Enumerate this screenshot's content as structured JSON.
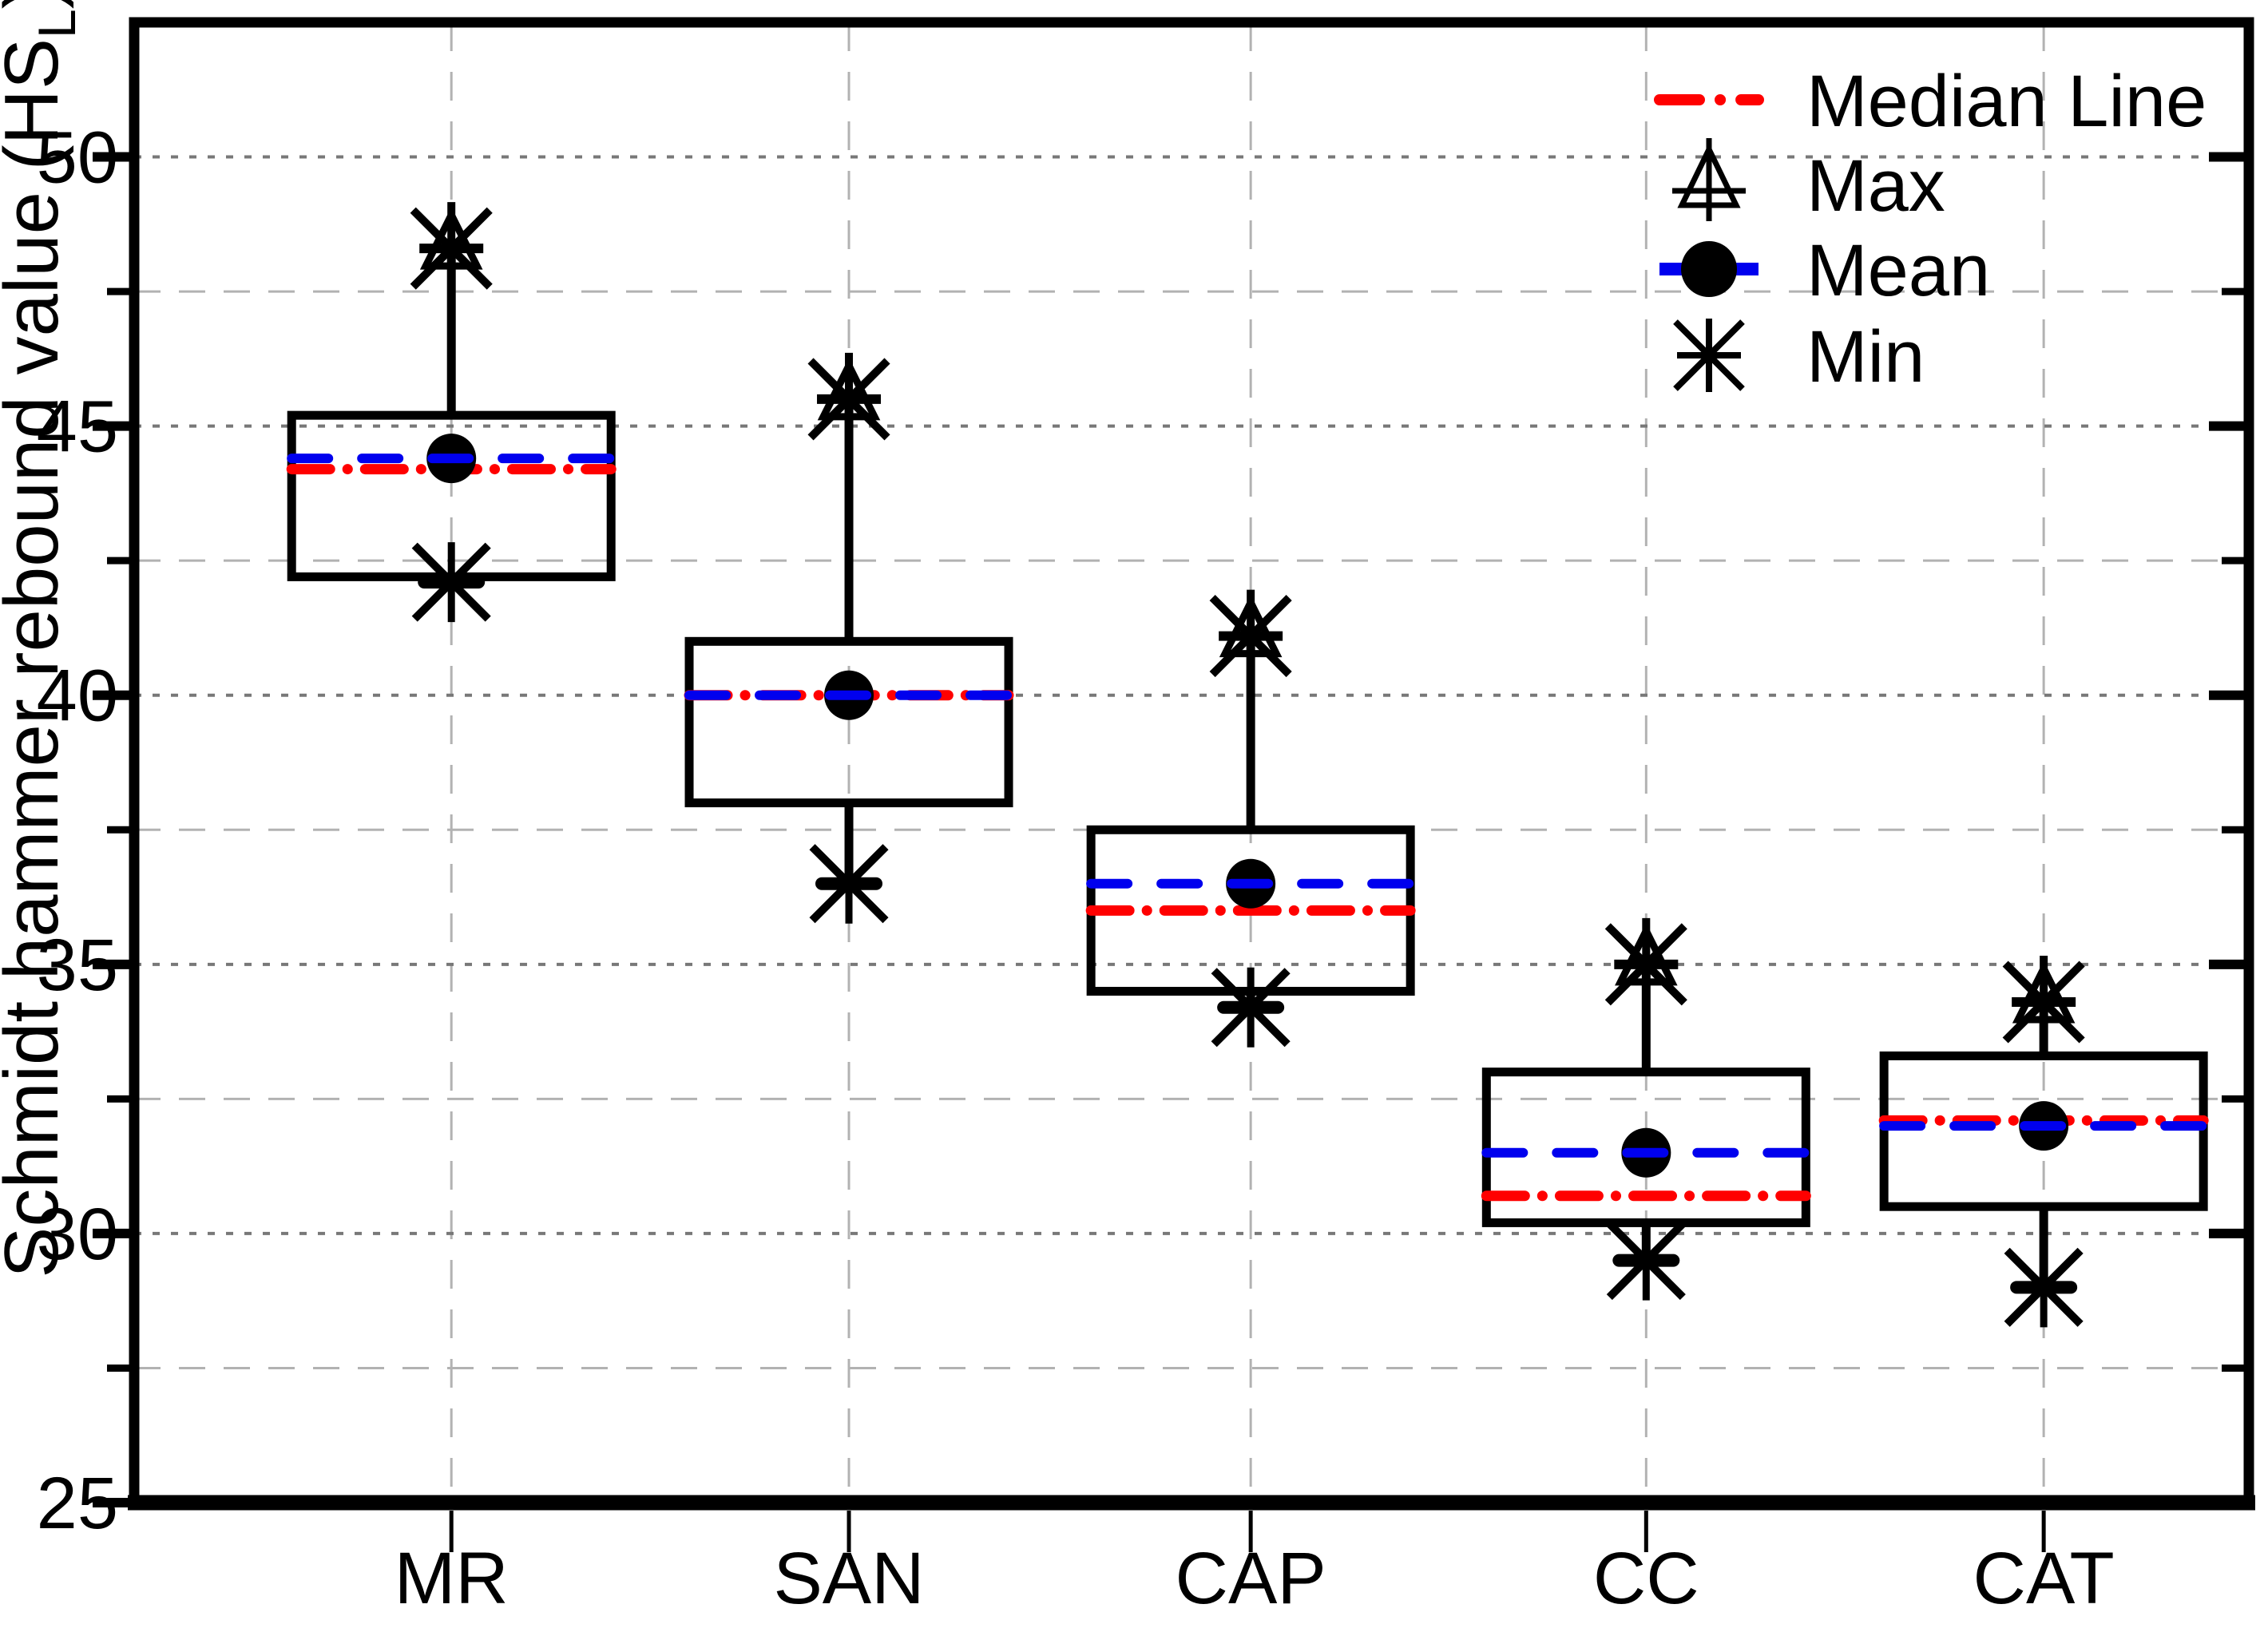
{
  "axes": {
    "y_title_main": "Schmidt hammer rebound value (HS",
    "y_title_sub": "L",
    "y_title_suffix": ")",
    "y_major_ticks": [
      25,
      30,
      35,
      40,
      45,
      50
    ],
    "y_minor_ticks": [
      27.5,
      32.5,
      37.5,
      42.5,
      47.5
    ],
    "y_range": [
      25,
      52.5
    ],
    "categories": [
      "MR",
      "SAN",
      "CAP",
      "CC",
      "CAT"
    ]
  },
  "legend": {
    "position": "top-right",
    "items": [
      {
        "key": "median",
        "label": "Median Line"
      },
      {
        "key": "max",
        "label": "Max"
      },
      {
        "key": "mean",
        "label": "Mean"
      },
      {
        "key": "min",
        "label": "Min"
      }
    ]
  },
  "colors": {
    "median_line": "#ff0000",
    "mean_line": "#0000ee",
    "marker": "#000000",
    "frame": "#000000",
    "grid_major": "#787878",
    "grid_minor": "#b2b2b2",
    "grid_vertical": "#b2b2b2",
    "background": "#ffffff"
  },
  "chart_data": {
    "type": "box",
    "title": "",
    "xlabel": "",
    "ylabel": "Schmidt hammer rebound value (HSL)",
    "ylim": [
      25,
      52.5
    ],
    "grid": "major-dotted and minor-dashed horizontal, dashed vertical per category",
    "legend_position": "top-right",
    "categories": [
      "MR",
      "SAN",
      "CAP",
      "CC",
      "CAT"
    ],
    "series": [
      {
        "name": "MR",
        "min": 42.1,
        "q1": 42.2,
        "median": 44.2,
        "mean": 44.4,
        "q3": 45.2,
        "max": 48.3
      },
      {
        "name": "SAN",
        "min": 36.5,
        "q1": 38.0,
        "median": 40.0,
        "mean": 40.0,
        "q3": 41.0,
        "max": 45.5
      },
      {
        "name": "CAP",
        "min": 34.2,
        "q1": 34.5,
        "median": 36.0,
        "mean": 36.5,
        "q3": 37.5,
        "max": 41.1
      },
      {
        "name": "CC",
        "min": 29.5,
        "q1": 30.2,
        "median": 30.7,
        "mean": 31.5,
        "q3": 33.0,
        "max": 35.0
      },
      {
        "name": "CAT",
        "min": 29.0,
        "q1": 30.5,
        "median": 32.1,
        "mean": 32.0,
        "q3": 33.3,
        "max": 34.3
      }
    ]
  }
}
